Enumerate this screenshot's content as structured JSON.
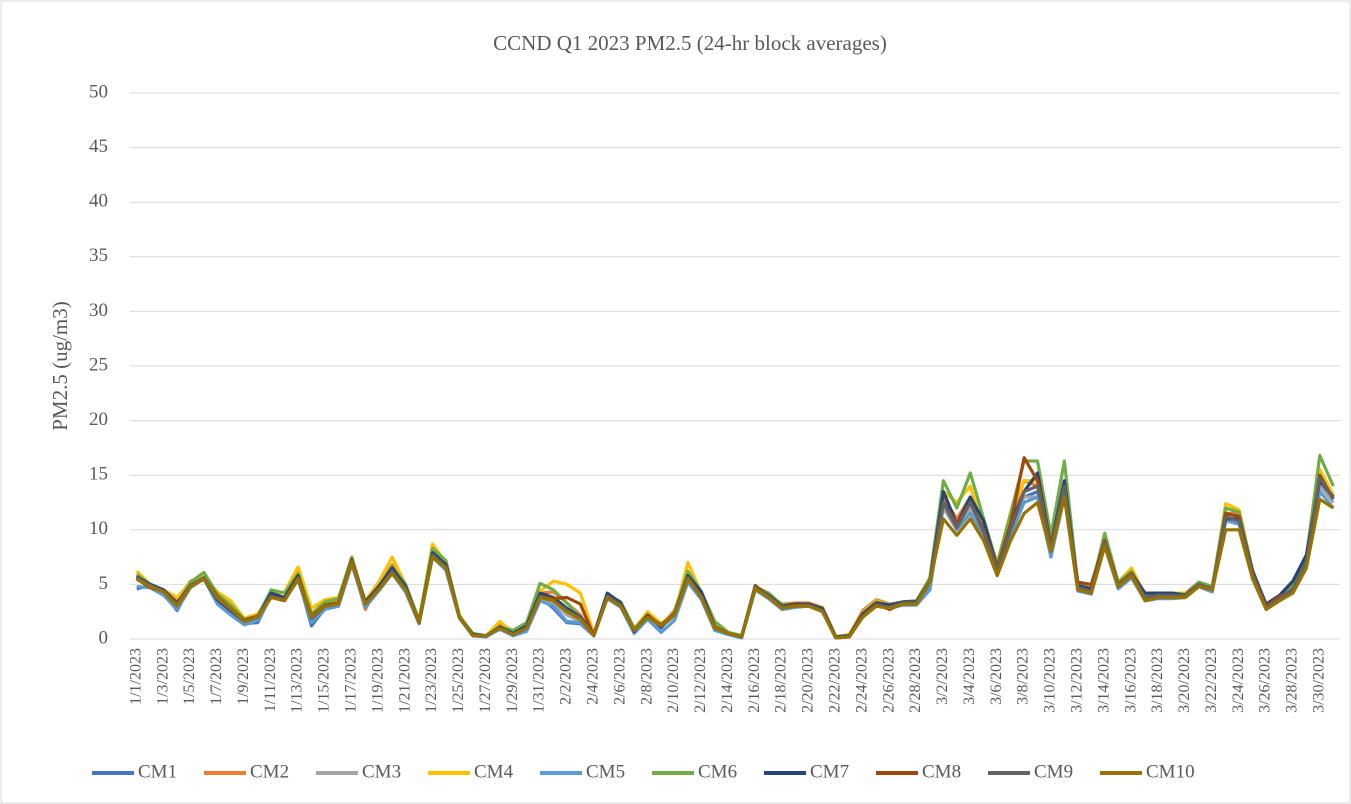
{
  "chart_data": {
    "type": "line",
    "title": "CCND Q1 2023 PM2.5 (24-hr block averages)",
    "y_label": "PM2.5 (ug/m3)",
    "categories": [
      "1/1/2023",
      null,
      "1/3/2023",
      null,
      "1/5/2023",
      null,
      "1/7/2023",
      null,
      "1/9/2023",
      null,
      "1/11/2023",
      null,
      "1/13/2023",
      null,
      "1/15/2023",
      null,
      "1/17/2023",
      null,
      "1/19/2023",
      null,
      "1/21/2023",
      null,
      "1/23/2023",
      null,
      "1/25/2023",
      null,
      "1/27/2023",
      null,
      "1/29/2023",
      null,
      "1/31/2023",
      null,
      "2/2/2023",
      null,
      "2/4/2023",
      null,
      "2/6/2023",
      null,
      "2/8/2023",
      null,
      "2/10/2023",
      null,
      "2/12/2023",
      null,
      "2/14/2023",
      null,
      "2/16/2023",
      null,
      "2/18/2023",
      null,
      "2/20/2023",
      null,
      "2/22/2023",
      null,
      "2/24/2023",
      null,
      "2/26/2023",
      null,
      "2/28/2023",
      null,
      "3/2/2023",
      null,
      "3/4/2023",
      null,
      "3/6/2023",
      null,
      "3/8/2023",
      null,
      "3/10/2023",
      null,
      "3/12/2023",
      null,
      "3/14/2023",
      null,
      "3/16/2023",
      null,
      "3/18/2023",
      null,
      "3/20/2023",
      null,
      "3/22/2023",
      null,
      "3/24/2023",
      null,
      "3/26/2023",
      null,
      "3/28/2023",
      null,
      "3/30/2023",
      null
    ],
    "ylim": [
      0,
      50
    ],
    "yticks": [
      0,
      5,
      10,
      15,
      20,
      25,
      30,
      35,
      40,
      45,
      50
    ],
    "grid": true,
    "legend": "bottom",
    "series": [
      {
        "name": "CM1",
        "color": "#4472c4",
        "values": [
          4.6,
          4.9,
          4.2,
          2.6,
          4.9,
          5.6,
          3.3,
          2.3,
          1.4,
          1.5,
          4.0,
          3.7,
          5.6,
          1.2,
          2.8,
          3.0,
          7.0,
          3.0,
          4.6,
          6.3,
          4.5,
          1.4,
          7.8,
          6.6,
          2.0,
          0.3,
          0.2,
          1.0,
          0.3,
          0.8,
          3.8,
          2.8,
          1.5,
          1.4,
          0.3,
          3.9,
          3.0,
          0.6,
          2.0,
          1.0,
          2.4,
          5.5,
          3.9,
          1.0,
          0.5,
          0.2,
          4.7,
          3.8,
          2.8,
          3.1,
          3.2,
          2.7,
          0.1,
          0.3,
          2.2,
          3.3,
          3.0,
          3.3,
          3.3,
          5.0,
          13.0,
          10.5,
          12.5,
          10.0,
          6.5,
          10.5,
          13.0,
          13.5,
          8.5,
          14.0,
          4.8,
          4.5,
          9.0,
          5.0,
          5.8,
          4.0,
          4.0,
          4.0,
          4.0,
          5.0,
          4.5,
          11.0,
          11.0,
          6.0,
          3.0,
          3.8,
          5.0,
          7.0,
          14.0,
          12.8
        ]
      },
      {
        "name": "CM2",
        "color": "#ed7d31",
        "values": [
          5.8,
          5.0,
          4.3,
          3.5,
          5.3,
          5.7,
          4.0,
          3.0,
          1.8,
          2.2,
          4.1,
          3.8,
          6.2,
          2.3,
          3.3,
          3.6,
          7.1,
          2.7,
          5.0,
          6.8,
          4.8,
          1.6,
          8.2,
          6.8,
          2.1,
          0.4,
          0.3,
          1.3,
          0.5,
          1.2,
          4.2,
          4.3,
          3.3,
          2.2,
          0.4,
          4.0,
          3.2,
          0.9,
          2.3,
          1.2,
          2.6,
          6.0,
          4.0,
          1.2,
          0.6,
          0.3,
          4.8,
          4.0,
          3.2,
          3.3,
          3.3,
          2.9,
          0.2,
          0.4,
          2.6,
          3.6,
          3.2,
          3.4,
          3.5,
          5.5,
          13.0,
          11.0,
          13.0,
          10.5,
          7.0,
          11.0,
          14.5,
          14.0,
          8.5,
          14.0,
          5.2,
          4.8,
          9.0,
          5.0,
          6.2,
          4.0,
          4.2,
          4.2,
          4.2,
          5.2,
          4.8,
          11.5,
          11.5,
          6.2,
          3.0,
          3.8,
          5.0,
          7.5,
          15.5,
          13.0
        ]
      },
      {
        "name": "CM3",
        "color": "#a5a5a5",
        "values": [
          5.6,
          4.8,
          4.3,
          3.0,
          4.9,
          5.6,
          3.6,
          2.6,
          1.6,
          1.9,
          3.9,
          3.6,
          5.6,
          1.8,
          2.9,
          3.2,
          7.0,
          3.1,
          4.6,
          6.2,
          4.6,
          1.5,
          7.6,
          6.5,
          2.0,
          0.3,
          0.3,
          1.1,
          0.4,
          1.0,
          3.8,
          3.3,
          2.2,
          1.6,
          0.3,
          3.8,
          3.0,
          0.7,
          2.0,
          1.1,
          2.1,
          5.5,
          3.8,
          1.0,
          0.5,
          0.2,
          4.6,
          3.8,
          2.8,
          3.0,
          3.0,
          2.6,
          0.1,
          0.2,
          2.1,
          3.1,
          2.9,
          3.2,
          3.2,
          5.2,
          12.0,
          10.0,
          12.0,
          9.5,
          6.2,
          9.8,
          13.0,
          13.0,
          8.0,
          13.5,
          4.7,
          4.4,
          8.7,
          4.8,
          5.9,
          3.7,
          3.9,
          3.9,
          3.9,
          4.9,
          4.6,
          10.8,
          10.5,
          5.8,
          2.8,
          3.6,
          4.5,
          6.8,
          14.0,
          12.5
        ]
      },
      {
        "name": "CM4",
        "color": "#ffc000",
        "values": [
          6.2,
          5.0,
          4.5,
          3.8,
          5.2,
          5.7,
          4.3,
          3.5,
          1.9,
          2.3,
          4.1,
          4.3,
          6.6,
          2.8,
          3.6,
          3.8,
          7.2,
          3.5,
          5.2,
          7.5,
          5.0,
          1.7,
          8.7,
          7.0,
          2.2,
          0.4,
          0.3,
          1.6,
          0.6,
          1.2,
          4.4,
          5.3,
          5.0,
          4.2,
          0.5,
          3.9,
          3.2,
          0.9,
          2.5,
          1.4,
          2.3,
          7.0,
          4.2,
          1.3,
          0.6,
          0.3,
          4.7,
          4.0,
          3.0,
          3.2,
          3.2,
          2.9,
          0.2,
          0.4,
          2.4,
          3.5,
          3.1,
          3.4,
          3.5,
          5.5,
          13.5,
          12.5,
          14.0,
          10.0,
          7.0,
          11.5,
          14.5,
          14.5,
          9.0,
          14.5,
          5.0,
          4.7,
          9.3,
          5.2,
          6.5,
          4.0,
          4.1,
          4.2,
          4.2,
          5.0,
          4.7,
          12.4,
          11.8,
          6.2,
          3.0,
          3.8,
          4.8,
          7.3,
          15.5,
          13.2
        ]
      },
      {
        "name": "CM5",
        "color": "#5b9bd5",
        "values": [
          4.8,
          4.7,
          4.0,
          2.7,
          4.7,
          5.5,
          3.2,
          2.2,
          1.3,
          1.7,
          3.9,
          3.6,
          5.4,
          1.5,
          2.7,
          3.0,
          6.8,
          2.9,
          4.4,
          6.0,
          4.3,
          1.4,
          7.5,
          6.3,
          1.9,
          0.3,
          0.2,
          0.9,
          0.3,
          0.7,
          3.5,
          3.0,
          1.6,
          1.5,
          0.3,
          3.7,
          2.9,
          0.5,
          1.8,
          0.6,
          1.7,
          5.2,
          3.6,
          0.8,
          0.4,
          0.1,
          4.5,
          3.7,
          2.7,
          2.9,
          3.0,
          2.5,
          0.1,
          0.2,
          2.0,
          3.1,
          2.8,
          3.1,
          3.1,
          4.5,
          12.5,
          10.0,
          11.5,
          9.5,
          6.0,
          9.5,
          12.5,
          13.0,
          7.5,
          13.0,
          4.4,
          4.1,
          8.5,
          4.6,
          5.6,
          3.5,
          3.7,
          3.7,
          3.8,
          4.8,
          4.3,
          11.0,
          10.5,
          5.8,
          2.8,
          3.5,
          4.3,
          6.8,
          13.5,
          12.0
        ]
      },
      {
        "name": "CM6",
        "color": "#70ad47",
        "values": [
          5.9,
          5.0,
          4.5,
          3.2,
          5.2,
          6.1,
          4.1,
          3.1,
          1.8,
          2.1,
          4.5,
          4.2,
          6.0,
          2.3,
          3.4,
          3.7,
          7.5,
          3.3,
          4.8,
          6.6,
          5.0,
          1.7,
          8.3,
          7.2,
          2.1,
          0.5,
          0.3,
          1.1,
          0.8,
          1.5,
          5.1,
          4.5,
          3.3,
          2.0,
          0.4,
          4.1,
          3.4,
          1.0,
          2.2,
          1.2,
          2.4,
          6.2,
          4.3,
          1.6,
          0.6,
          0.3,
          4.8,
          4.2,
          3.1,
          3.2,
          3.2,
          2.8,
          0.2,
          0.3,
          2.3,
          3.4,
          3.1,
          3.4,
          3.5,
          5.6,
          14.5,
          12.0,
          15.2,
          11.0,
          6.8,
          11.5,
          16.3,
          16.3,
          9.5,
          16.3,
          5.0,
          4.6,
          9.7,
          5.2,
          6.2,
          3.9,
          4.1,
          4.2,
          4.1,
          5.2,
          4.8,
          12.0,
          11.6,
          6.3,
          3.1,
          3.8,
          4.9,
          7.5,
          16.8,
          14.0
        ]
      },
      {
        "name": "CM7",
        "color": "#264478",
        "values": [
          5.7,
          5.0,
          4.5,
          3.3,
          4.9,
          5.5,
          3.6,
          2.6,
          1.6,
          2.0,
          4.2,
          3.8,
          5.8,
          1.9,
          3.0,
          3.3,
          7.2,
          3.4,
          4.8,
          6.5,
          4.8,
          1.5,
          7.9,
          6.8,
          2.0,
          0.4,
          0.3,
          1.1,
          0.5,
          1.2,
          4.2,
          3.8,
          2.8,
          2.0,
          0.4,
          4.2,
          3.3,
          0.7,
          2.2,
          1.1,
          2.3,
          5.8,
          4.3,
          1.1,
          0.5,
          0.2,
          4.8,
          4.0,
          3.0,
          3.2,
          3.2,
          2.8,
          0.2,
          0.3,
          2.3,
          3.3,
          3.1,
          3.4,
          3.4,
          5.3,
          13.5,
          10.5,
          13.0,
          10.8,
          6.5,
          10.5,
          13.5,
          15.2,
          8.5,
          14.5,
          4.9,
          4.6,
          9.0,
          4.8,
          6.0,
          4.2,
          4.2,
          4.2,
          4.0,
          5.0,
          4.6,
          11.0,
          11.0,
          6.2,
          3.2,
          4.0,
          5.3,
          7.7,
          14.5,
          13.0
        ]
      },
      {
        "name": "CM8",
        "color": "#9e480e",
        "values": [
          5.5,
          4.7,
          4.4,
          3.2,
          4.9,
          5.6,
          3.9,
          2.8,
          1.7,
          2.1,
          3.8,
          3.6,
          5.6,
          2.1,
          3.1,
          3.3,
          7.3,
          3.2,
          4.6,
          6.1,
          4.6,
          1.6,
          7.6,
          6.6,
          2.0,
          0.3,
          0.3,
          1.0,
          0.4,
          1.0,
          3.9,
          3.7,
          3.8,
          3.2,
          0.3,
          3.9,
          3.1,
          0.8,
          2.1,
          1.3,
          2.3,
          5.6,
          3.9,
          1.1,
          0.5,
          0.2,
          4.9,
          3.9,
          2.9,
          3.1,
          3.1,
          2.6,
          0.1,
          0.2,
          2.1,
          3.2,
          2.7,
          3.3,
          3.3,
          5.3,
          12.5,
          10.5,
          12.5,
          10.0,
          6.5,
          10.5,
          16.6,
          14.5,
          8.5,
          13.5,
          5.2,
          5.0,
          9.0,
          5.0,
          6.0,
          3.8,
          4.0,
          4.0,
          4.0,
          5.0,
          4.6,
          11.5,
          11.2,
          6.0,
          3.0,
          3.9,
          4.5,
          7.0,
          15.0,
          12.8
        ]
      },
      {
        "name": "CM9",
        "color": "#636363",
        "values": [
          5.6,
          4.9,
          4.4,
          3.1,
          4.9,
          5.6,
          3.7,
          2.7,
          1.6,
          2.0,
          3.9,
          3.6,
          5.5,
          1.9,
          3.0,
          3.2,
          7.1,
          3.2,
          4.6,
          6.2,
          4.6,
          1.5,
          7.7,
          6.6,
          2.0,
          0.3,
          0.3,
          1.0,
          0.4,
          1.0,
          3.9,
          3.5,
          2.6,
          1.9,
          0.3,
          3.9,
          3.1,
          0.8,
          2.0,
          1.2,
          2.2,
          5.6,
          3.9,
          1.0,
          0.5,
          0.2,
          4.7,
          3.9,
          2.9,
          3.0,
          3.1,
          2.6,
          0.1,
          0.2,
          2.1,
          3.1,
          2.9,
          3.3,
          3.3,
          5.3,
          12.5,
          10.2,
          12.5,
          9.8,
          6.2,
          10.0,
          13.5,
          14.0,
          8.2,
          14.0,
          4.7,
          4.4,
          8.8,
          4.9,
          5.9,
          3.8,
          4.0,
          4.0,
          3.9,
          5.0,
          4.6,
          11.2,
          10.8,
          5.9,
          2.9,
          3.7,
          4.6,
          7.0,
          14.8,
          12.8
        ]
      },
      {
        "name": "CM10",
        "color": "#997300",
        "values": [
          5.5,
          4.8,
          4.3,
          3.0,
          4.8,
          5.5,
          3.8,
          2.8,
          1.6,
          2.0,
          3.8,
          3.5,
          5.5,
          2.0,
          3.0,
          3.2,
          7.0,
          3.2,
          4.5,
          6.0,
          4.5,
          1.5,
          7.5,
          6.5,
          2.0,
          0.3,
          0.3,
          1.0,
          0.4,
          1.0,
          3.8,
          3.5,
          2.5,
          1.8,
          0.3,
          3.8,
          3.0,
          0.8,
          2.0,
          1.2,
          2.2,
          5.5,
          3.8,
          1.0,
          0.5,
          0.2,
          4.6,
          3.8,
          2.8,
          3.0,
          3.0,
          2.5,
          0.1,
          0.2,
          2.0,
          3.0,
          2.8,
          3.2,
          3.2,
          5.2,
          11.0,
          9.5,
          11.0,
          9.0,
          5.8,
          9.0,
          11.5,
          12.5,
          8.0,
          13.0,
          4.5,
          4.2,
          8.5,
          4.8,
          5.8,
          3.5,
          3.8,
          3.8,
          3.8,
          4.8,
          4.5,
          10.0,
          10.0,
          5.5,
          2.7,
          3.5,
          4.2,
          6.5,
          12.8,
          12.0
        ]
      }
    ]
  }
}
